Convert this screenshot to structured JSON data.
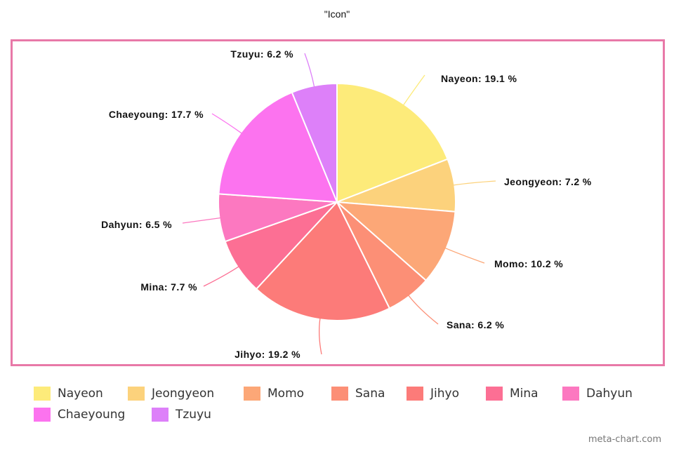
{
  "chart_data": {
    "type": "pie",
    "title": "\"Icon\"",
    "categories": [
      "Nayeon",
      "Jeongyeon",
      "Momo",
      "Sana",
      "Jihyo",
      "Mina",
      "Dahyun",
      "Chaeyoung",
      "Tzuyu"
    ],
    "values": [
      19.1,
      7.2,
      10.2,
      6.2,
      19.2,
      7.7,
      6.5,
      17.7,
      6.2
    ],
    "labels": [
      "Nayeon: 19.1 %",
      "Jeongyeon: 7.2 %",
      "Momo: 10.2 %",
      "Sana: 6.2 %",
      "Jihyo: 19.2 %",
      "Mina: 7.7 %",
      "Dahyun: 6.5 %",
      "Chaeyoung: 17.7 %",
      "Tzuyu: 6.2 %"
    ],
    "colors": [
      "#fdeb7a",
      "#fcd27c",
      "#fca777",
      "#fc8f76",
      "#fc7b79",
      "#fc6f94",
      "#fc78c0",
      "#fc73ef",
      "#dd80f9"
    ],
    "legend_position": "bottom",
    "border_color": "#e879a8"
  },
  "watermark": "meta-chart.com"
}
